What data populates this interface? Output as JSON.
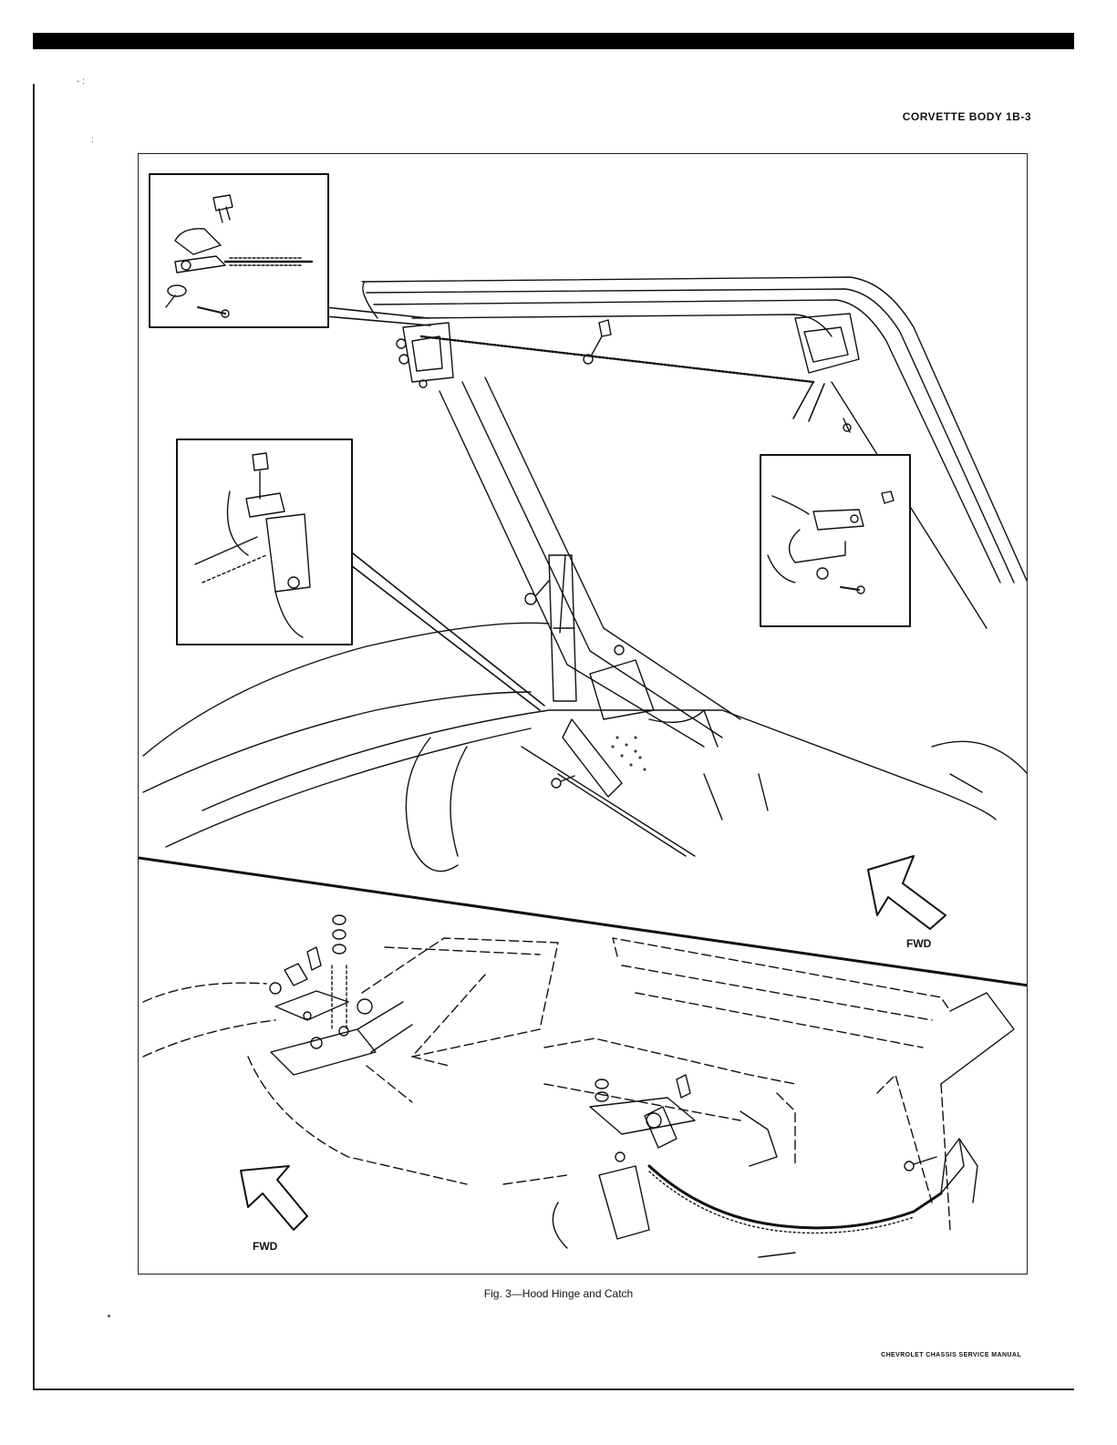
{
  "page": {
    "header": "CORVETTE BODY 1B-3",
    "caption": "Fig. 3—Hood Hinge and Catch",
    "footer": "CHEVROLET CHASSIS SERVICE MANUAL"
  },
  "figure": {
    "upper": {
      "direction_label": "FWD"
    },
    "lower": {
      "direction_label": "FWD"
    }
  },
  "colors": {
    "ink": "#111111",
    "paper": "#ffffff",
    "bar": "#000000"
  }
}
